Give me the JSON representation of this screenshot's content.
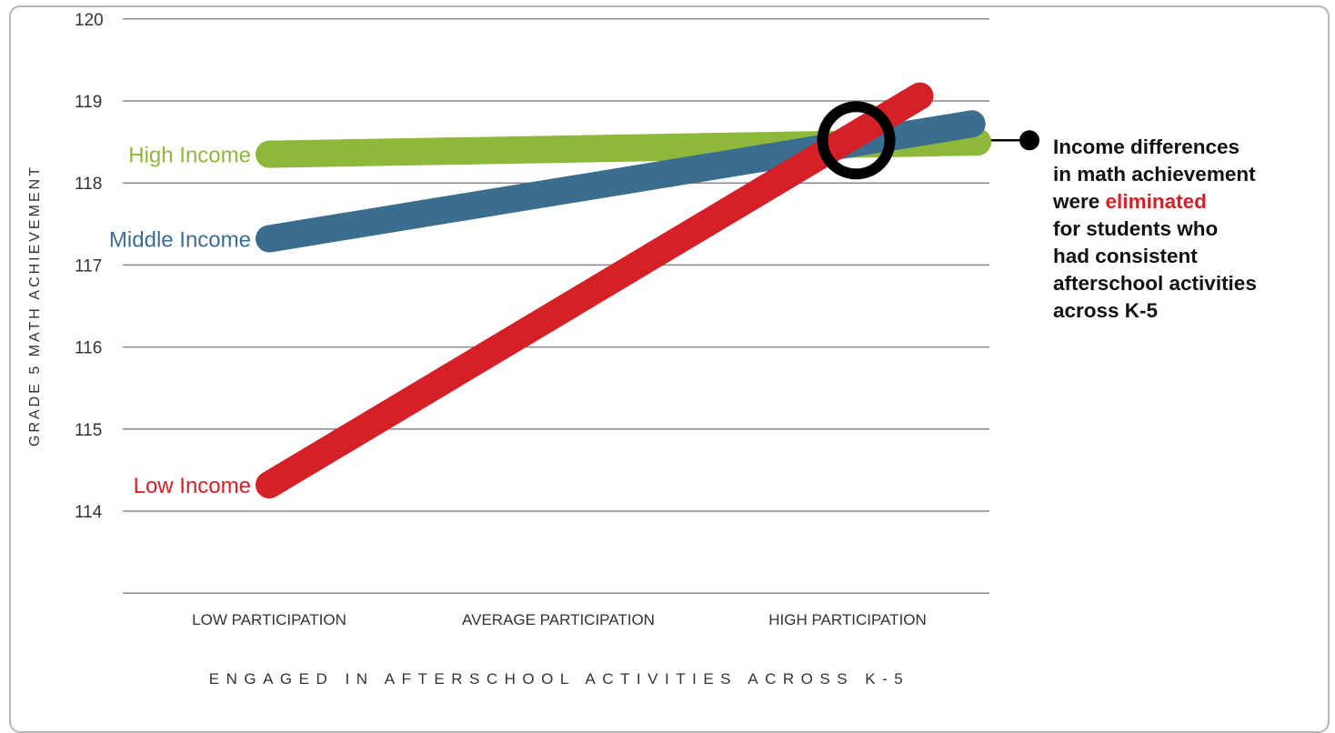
{
  "chart_data": {
    "type": "line",
    "title": "",
    "xlabel": "ENGAGED IN AFTERSCHOOL ACTIVITIES ACROSS K-5",
    "ylabel": "GRADE 5 MATH ACHIEVEMENT",
    "categories": [
      "LOW PARTICIPATION",
      "AVERAGE PARTICIPATION",
      "HIGH PARTICIPATION"
    ],
    "yticks": [
      114,
      115,
      116,
      117,
      118,
      119,
      120
    ],
    "ylim": [
      113,
      120
    ],
    "grid": "horizontal",
    "series": [
      {
        "name": "High Income",
        "color": "#8db83a",
        "x_start": 0,
        "x_end": 2.45,
        "y_start": 118.35,
        "y_end": 118.5
      },
      {
        "name": "Middle Income",
        "color": "#3a6d8f",
        "x_start": 0,
        "x_end": 2.43,
        "y_start": 117.32,
        "y_end": 118.72
      },
      {
        "name": "Low Income",
        "color": "#d52028",
        "x_start": 0,
        "x_end": 2.25,
        "y_start": 114.32,
        "y_end": 119.06
      }
    ],
    "highlight": {
      "x": 2.03,
      "y": 118.52,
      "ring_color": "#000000"
    },
    "annotation": {
      "lines": [
        [
          {
            "text": "Income differences"
          }
        ],
        [
          {
            "text": "in math achievement"
          }
        ],
        [
          {
            "text": "were "
          },
          {
            "text": "eliminated",
            "highlight": true
          }
        ],
        [
          {
            "text": "for students who"
          }
        ],
        [
          {
            "text": "had consistent"
          }
        ],
        [
          {
            "text": "afterschool activities"
          }
        ],
        [
          {
            "text": "across K-5"
          }
        ]
      ],
      "highlight_color": "#d52028"
    }
  }
}
